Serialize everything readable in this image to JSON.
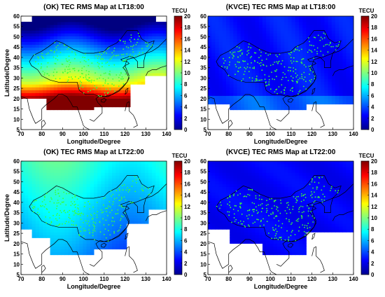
{
  "chart_data": [
    {
      "type": "heatmap",
      "title": "(OK) TEC RMS Map at LT18:00",
      "xlabel": "Longitude/Degree",
      "ylabel": "Latitude/Degree",
      "xlim": [
        70,
        140
      ],
      "ylim": [
        5,
        60
      ],
      "xticks": [
        70,
        80,
        90,
        100,
        110,
        120,
        130,
        140
      ],
      "yticks": [
        5,
        10,
        15,
        20,
        25,
        30,
        35,
        40,
        45,
        50,
        55,
        60
      ],
      "colorbar": {
        "label": "TECU",
        "range": [
          0,
          20
        ],
        "ticks": [
          0,
          2,
          4,
          6,
          8,
          10,
          12,
          14,
          16,
          18,
          20
        ]
      },
      "pattern": "ok18"
    },
    {
      "type": "heatmap",
      "title": "(KVCE) TEC RMS Map at LT18:00",
      "xlabel": "Longitude/Degree",
      "ylabel": "",
      "xlim": [
        70,
        140
      ],
      "ylim": [
        5,
        60
      ],
      "xticks": [
        70,
        80,
        90,
        100,
        110,
        120,
        130,
        140
      ],
      "yticks": [
        5,
        10,
        15,
        20,
        25,
        30,
        35,
        40,
        45,
        50,
        55,
        60
      ],
      "colorbar": {
        "label": "TECU",
        "range": [
          0,
          20
        ],
        "ticks": [
          0,
          2,
          4,
          6,
          8,
          10,
          12,
          14,
          16,
          18,
          20
        ]
      },
      "pattern": "kv18"
    },
    {
      "type": "heatmap",
      "title": "(OK) TEC RMS Map at LT22:00",
      "xlabel": "Longitude/Degree",
      "ylabel": "Latitude/Degree",
      "xlim": [
        70,
        140
      ],
      "ylim": [
        5,
        60
      ],
      "xticks": [
        70,
        80,
        90,
        100,
        110,
        120,
        130,
        140
      ],
      "yticks": [
        5,
        10,
        15,
        20,
        25,
        30,
        35,
        40,
        45,
        50,
        55,
        60
      ],
      "colorbar": {
        "label": "TECU",
        "range": [
          0,
          20
        ],
        "ticks": [
          0,
          2,
          4,
          6,
          8,
          10,
          12,
          14,
          16,
          18,
          20
        ]
      },
      "pattern": "ok22"
    },
    {
      "type": "heatmap",
      "title": "(KVCE) TEC RMS Map at LT22:00",
      "xlabel": "Longitude/Degree",
      "ylabel": "",
      "xlim": [
        70,
        140
      ],
      "ylim": [
        5,
        60
      ],
      "xticks": [
        70,
        80,
        90,
        100,
        110,
        120,
        130,
        140
      ],
      "yticks": [
        5,
        10,
        15,
        20,
        25,
        30,
        35,
        40,
        45,
        50,
        55,
        60
      ],
      "colorbar": {
        "label": "TECU",
        "range": [
          0,
          20
        ],
        "ticks": [
          0,
          2,
          4,
          6,
          8,
          10,
          12,
          14,
          16,
          18,
          20
        ]
      },
      "pattern": "kv22"
    }
  ]
}
